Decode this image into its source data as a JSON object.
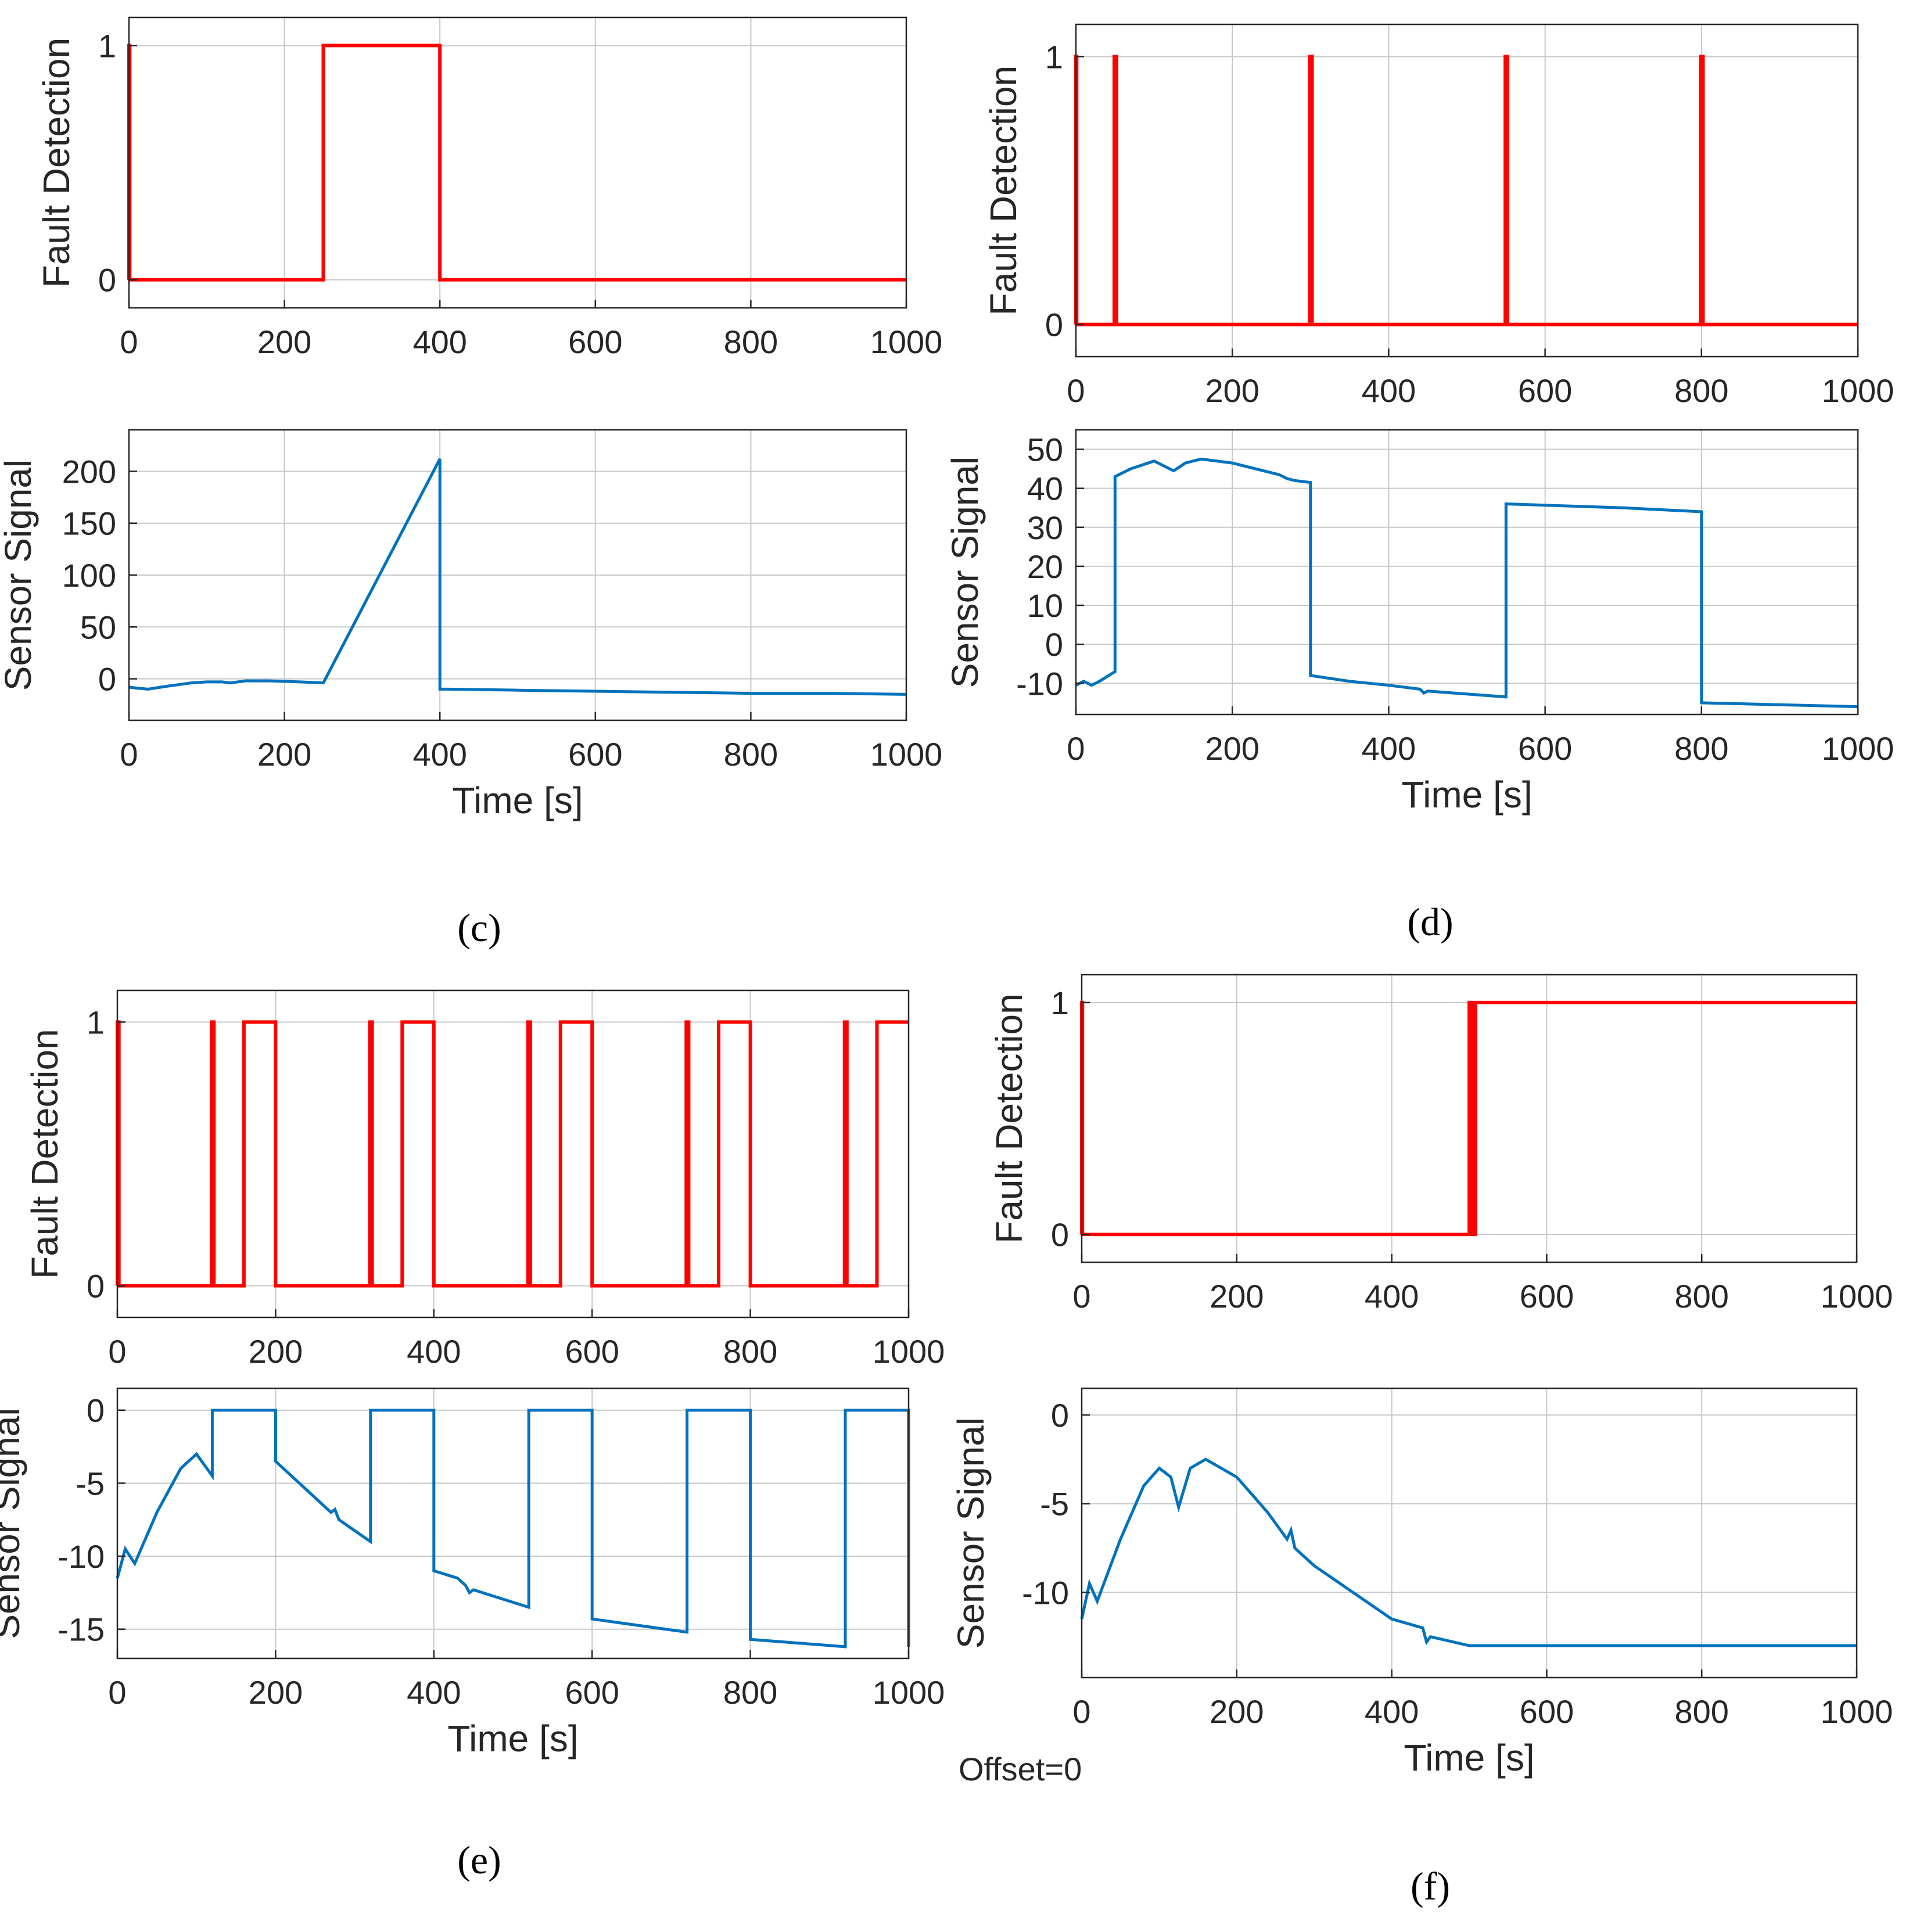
{
  "chart_data": [
    {
      "id": "c-top",
      "type": "line",
      "ylabel": "Fault Detection",
      "xlabel": "",
      "xlim": [
        0,
        1000
      ],
      "ylim": [
        -0.12,
        1.12
      ],
      "xticks": [
        0,
        200,
        400,
        600,
        800,
        1000
      ],
      "yticks": [
        0,
        1
      ],
      "color": "#ff0000",
      "series": [
        {
          "name": "fault",
          "x": [
            0,
            0,
            1,
            1,
            250,
            250,
            400,
            400,
            1000
          ],
          "y": [
            0,
            1,
            1,
            0,
            0,
            1,
            1,
            0,
            0
          ]
        }
      ]
    },
    {
      "id": "c-bottom",
      "type": "line",
      "ylabel": "Sensor Signal",
      "xlabel": "Time [s]",
      "xlim": [
        0,
        1000
      ],
      "ylim": [
        -40,
        240
      ],
      "xticks": [
        0,
        200,
        400,
        600,
        800,
        1000
      ],
      "yticks": [
        0,
        50,
        100,
        150,
        200
      ],
      "color": "#0072bd",
      "series": [
        {
          "name": "sensor",
          "x": [
            0,
            10,
            25,
            50,
            80,
            100,
            120,
            130,
            150,
            180,
            220,
            250,
            400,
            400,
            410,
            500,
            600,
            700,
            800,
            900,
            1000
          ],
          "y": [
            -8,
            -9,
            -10,
            -7,
            -4,
            -3,
            -3,
            -4,
            -2,
            -2,
            -3,
            -4,
            212,
            -10,
            -10,
            -11,
            -12,
            -13,
            -14,
            -14,
            -15
          ]
        }
      ]
    },
    {
      "id": "d-top",
      "type": "line",
      "ylabel": "Fault Detection",
      "xlabel": "",
      "xlim": [
        0,
        1000
      ],
      "ylim": [
        -0.12,
        1.12
      ],
      "xticks": [
        0,
        200,
        400,
        600,
        800,
        1000
      ],
      "yticks": [
        0,
        1
      ],
      "color": "#ff0000",
      "series": [
        {
          "name": "fault",
          "x": [
            0,
            0,
            1,
            1,
            49,
            49,
            52,
            52,
            299,
            299,
            302,
            302,
            549,
            549,
            552,
            552,
            799,
            799,
            802,
            802,
            1000
          ],
          "y": [
            0,
            1,
            1,
            0,
            0,
            1,
            1,
            0,
            0,
            1,
            1,
            0,
            0,
            1,
            1,
            0,
            0,
            1,
            1,
            0,
            0
          ]
        }
      ]
    },
    {
      "id": "d-bottom",
      "type": "line",
      "ylabel": "Sensor Signal",
      "xlabel": "Time [s]",
      "xlim": [
        0,
        1000
      ],
      "ylim": [
        -18,
        55
      ],
      "xticks": [
        0,
        200,
        400,
        600,
        800,
        1000
      ],
      "yticks": [
        -10,
        0,
        10,
        20,
        30,
        40,
        50
      ],
      "color": "#0072bd",
      "series": [
        {
          "name": "sensor",
          "x": [
            0,
            10,
            20,
            30,
            50,
            50,
            70,
            100,
            125,
            140,
            160,
            200,
            260,
            270,
            280,
            300,
            300,
            350,
            400,
            440,
            445,
            450,
            550,
            550,
            700,
            800,
            800,
            900,
            1000
          ],
          "y": [
            -10.5,
            -9.5,
            -10.5,
            -9.5,
            -7,
            43,
            45,
            47,
            44.5,
            46.5,
            47.5,
            46.5,
            43.5,
            42.5,
            42,
            41.5,
            -8,
            -9.5,
            -10.5,
            -11.5,
            -12.5,
            -12,
            -13.5,
            36,
            35,
            34,
            -15,
            -15.5,
            -16
          ]
        }
      ]
    },
    {
      "id": "e-top",
      "type": "line",
      "ylabel": "Fault Detection",
      "xlabel": "",
      "xlim": [
        0,
        1000
      ],
      "ylim": [
        -0.12,
        1.12
      ],
      "xticks": [
        0,
        200,
        400,
        600,
        800,
        1000
      ],
      "yticks": [
        0,
        1
      ],
      "color": "#ff0000",
      "series": [
        {
          "name": "fault",
          "x": [
            0,
            0,
            2,
            2,
            119,
            119,
            122,
            122,
            160,
            160,
            200,
            200,
            319,
            319,
            322,
            322,
            360,
            360,
            400,
            400,
            519,
            519,
            522,
            522,
            560,
            560,
            600,
            600,
            719,
            719,
            722,
            722,
            760,
            760,
            800,
            800,
            919,
            919,
            922,
            922,
            960,
            960,
            1000
          ],
          "y": [
            0,
            1,
            1,
            0,
            0,
            1,
            1,
            0,
            0,
            1,
            1,
            0,
            0,
            1,
            1,
            0,
            0,
            1,
            1,
            0,
            0,
            1,
            1,
            0,
            0,
            1,
            1,
            0,
            0,
            1,
            1,
            0,
            0,
            1,
            1,
            0,
            0,
            1,
            1,
            0,
            0,
            1,
            1
          ]
        }
      ]
    },
    {
      "id": "e-bottom",
      "type": "line",
      "ylabel": "Sensor Signal",
      "xlabel": "Time [s]",
      "xlim": [
        0,
        1000
      ],
      "ylim": [
        -17,
        1.5
      ],
      "xticks": [
        0,
        200,
        400,
        600,
        800,
        1000
      ],
      "yticks": [
        -15,
        -10,
        -5,
        0
      ],
      "color": "#0072bd",
      "series": [
        {
          "name": "sensor",
          "x": [
            0,
            10,
            22,
            50,
            80,
            100,
            120,
            120,
            200,
            200,
            240,
            270,
            275,
            280,
            320,
            320,
            400,
            400,
            430,
            440,
            445,
            450,
            520,
            520,
            600,
            600,
            720,
            720,
            800,
            800,
            920,
            920,
            1000,
            1000
          ],
          "y": [
            -11.5,
            -9.5,
            -10.5,
            -7,
            -4,
            -3,
            -4.5,
            0,
            0,
            -3.5,
            -5.5,
            -7,
            -6.8,
            -7.5,
            -9,
            0,
            0,
            -11,
            -11.5,
            -12,
            -12.5,
            -12.3,
            -13.5,
            0,
            0,
            -14.3,
            -15.2,
            0,
            0,
            -15.7,
            -16.2,
            0,
            0,
            -16.2
          ]
        }
      ]
    },
    {
      "id": "f-top",
      "type": "line",
      "ylabel": "Fault Detection",
      "xlabel": "",
      "xlim": [
        0,
        1000
      ],
      "ylim": [
        -0.12,
        1.12
      ],
      "xticks": [
        0,
        200,
        400,
        600,
        800,
        1000
      ],
      "yticks": [
        0,
        1
      ],
      "color": "#ff0000",
      "series": [
        {
          "name": "fault",
          "x": [
            0,
            0,
            1,
            1,
            500,
            500,
            502,
            502,
            504,
            504,
            506,
            506,
            508,
            508,
            510,
            510,
            1000
          ],
          "y": [
            0,
            1,
            1,
            0,
            0,
            1,
            1,
            0,
            0,
            1,
            1,
            0,
            0,
            1,
            1,
            1,
            1
          ]
        }
      ]
    },
    {
      "id": "f-bottom",
      "type": "line",
      "ylabel": "Sensor Signal",
      "xlabel": "Time [s]",
      "xlim": [
        0,
        1000
      ],
      "ylim": [
        -14.8,
        1.5
      ],
      "xticks": [
        0,
        200,
        400,
        600,
        800,
        1000
      ],
      "yticks": [
        -10,
        -5,
        0
      ],
      "color": "#0072bd",
      "series": [
        {
          "name": "sensor",
          "x": [
            0,
            10,
            20,
            50,
            80,
            100,
            115,
            125,
            140,
            160,
            200,
            240,
            265,
            270,
            275,
            300,
            350,
            400,
            440,
            445,
            450,
            500,
            600,
            700,
            800,
            900,
            1000
          ],
          "y": [
            -11.5,
            -9.5,
            -10.5,
            -7,
            -4,
            -3,
            -3.5,
            -5.2,
            -3,
            -2.5,
            -3.5,
            -5.5,
            -7,
            -6.5,
            -7.5,
            -8.5,
            -10,
            -11.5,
            -12,
            -12.8,
            -12.5,
            -13,
            -13,
            -13,
            -13,
            -13,
            -13
          ]
        }
      ]
    }
  ],
  "panel_labels": [
    "(c)",
    "(d)",
    "(e)",
    "(f)"
  ],
  "annotations": {
    "offset_note": "Offset=0"
  }
}
